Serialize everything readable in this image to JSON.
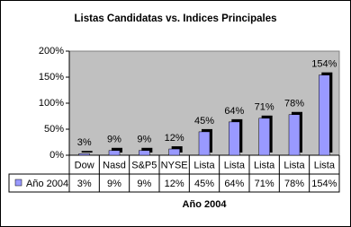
{
  "chart_data": {
    "type": "bar",
    "title": "Listas Candidatas vs. Indices Principales",
    "categories": [
      "Dow",
      "Nasd",
      "S&P5",
      "NYSE",
      "Lista",
      "Lista",
      "Lista",
      "Lista",
      "Lista"
    ],
    "series": [
      {
        "name": "Año 2004",
        "color": "#9999ff",
        "values": [
          3,
          9,
          9,
          12,
          45,
          64,
          71,
          78,
          154
        ],
        "value_labels": [
          "3%",
          "9%",
          "9%",
          "12%",
          "45%",
          "64%",
          "71%",
          "78%",
          "154%"
        ]
      }
    ],
    "ylim": [
      0,
      200
    ],
    "yticks": [
      {
        "value": 0,
        "label": "0%"
      },
      {
        "value": 50,
        "label": "50%"
      },
      {
        "value": 100,
        "label": "100%"
      },
      {
        "value": 150,
        "label": "150%"
      },
      {
        "value": 200,
        "label": "200%"
      }
    ],
    "xlabel": "Año 2004",
    "grid": false
  }
}
